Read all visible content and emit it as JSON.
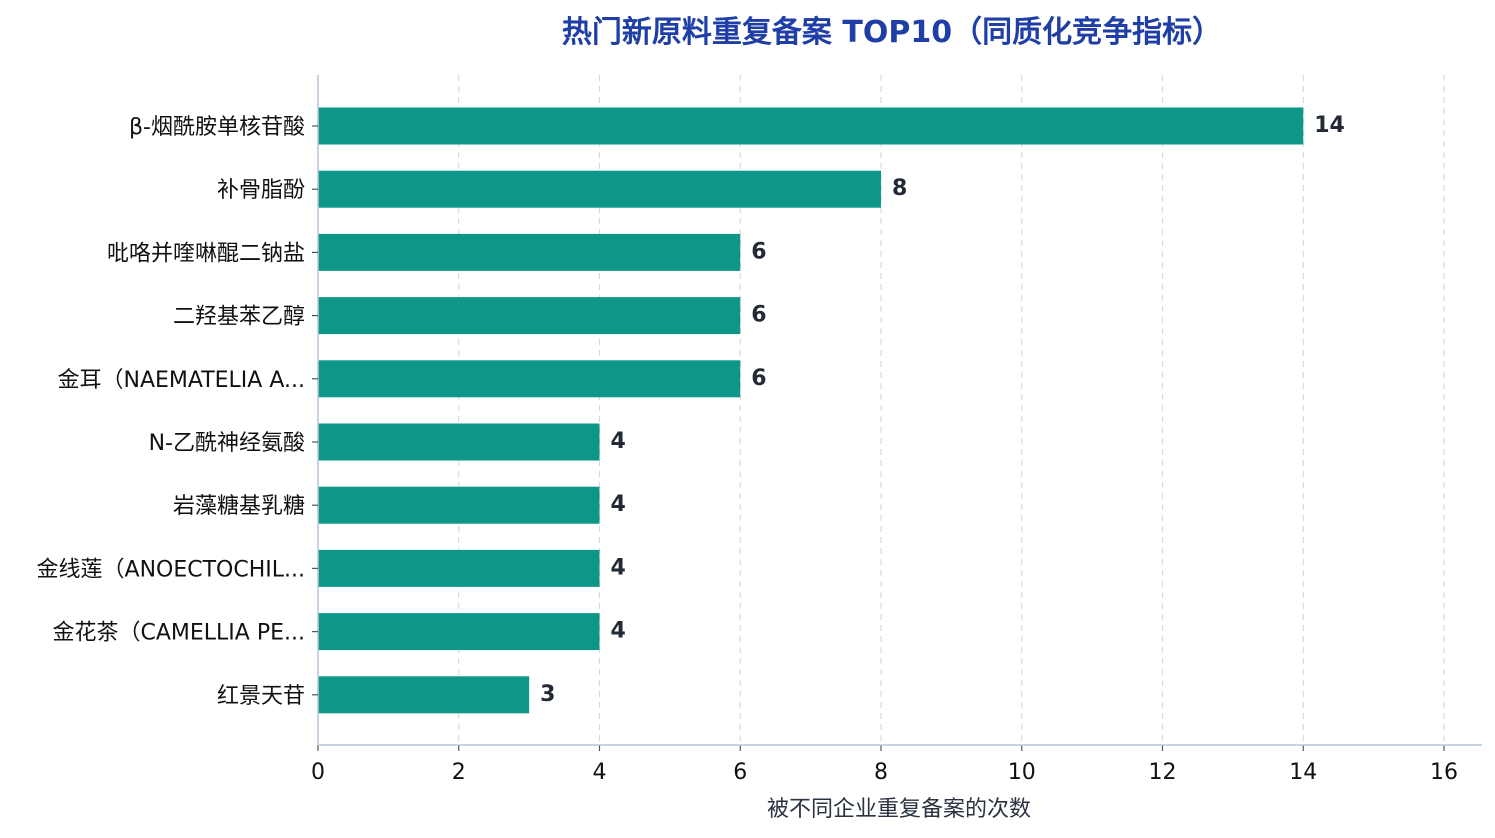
{
  "chart_data": {
    "type": "bar",
    "orientation": "horizontal",
    "title": "热门新原料重复备案 TOP10（同质化竞争指标）",
    "xlabel": "被不同企业重复备案的次数",
    "ylabel": "",
    "xlim": [
      0,
      16.5
    ],
    "xticks": [
      0,
      2,
      4,
      6,
      8,
      10,
      12,
      14,
      16
    ],
    "grid": "x, dashed",
    "bar_color": "#0e9689",
    "categories": [
      "β-烟酰胺单核苷酸",
      "补骨脂酚",
      "吡咯并喹啉醌二钠盐",
      "二羟基苯乙醇",
      "金耳（NAEMATELIA A...",
      "N-乙酰神经氨酸",
      "岩藻糖基乳糖",
      "金线莲（ANOECTOCHIL...",
      "金花茶（CAMELLIA PE...",
      "红景天苷"
    ],
    "values": [
      14,
      8,
      6,
      6,
      6,
      4,
      4,
      4,
      4,
      3
    ],
    "data_labels": [
      "14",
      "8",
      "6",
      "6",
      "6",
      "4",
      "4",
      "4",
      "4",
      "3"
    ]
  }
}
